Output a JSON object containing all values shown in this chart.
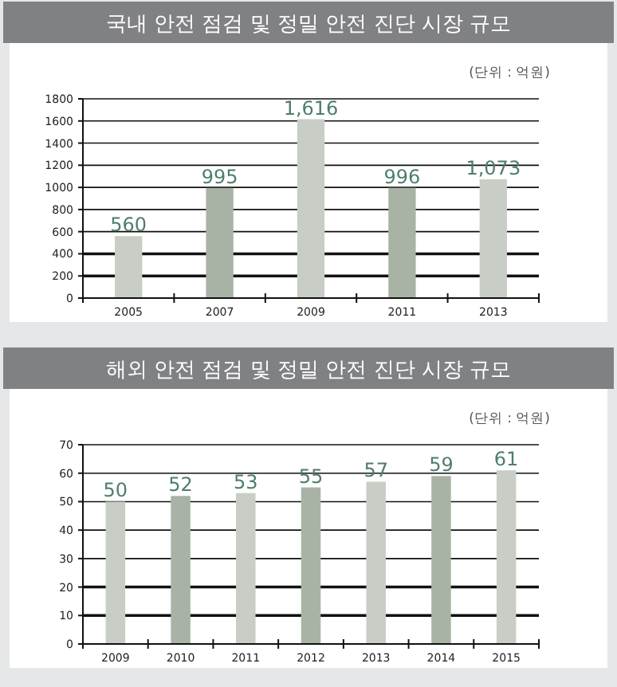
{
  "chart_data": [
    {
      "type": "bar",
      "title": "국내 안전 점검 및 정밀 안전 진단 시장 규모",
      "subtitle": "(단위 : 억원)",
      "categories": [
        "2005",
        "2007",
        "2009",
        "2011",
        "2013"
      ],
      "values": [
        560,
        995,
        1616,
        996,
        1073
      ],
      "colors": [
        "#c8cec5",
        "#a8b3a5",
        "#c8cec5",
        "#a8b3a5",
        "#c8cec5"
      ],
      "value_labels": [
        "560",
        "995",
        "1,616",
        "996",
        "1,073"
      ],
      "ylim": [
        0,
        1800
      ],
      "yticks": [
        0,
        200,
        400,
        600,
        800,
        1000,
        1200,
        1400,
        1600,
        1800
      ],
      "grid": "y"
    },
    {
      "type": "bar",
      "title": "해외 안전 점검 및 정밀 안전 진단 시장 규모",
      "subtitle": "(단위 : 억원)",
      "categories": [
        "2009",
        "2010",
        "2011",
        "2012",
        "2013",
        "2014",
        "2015"
      ],
      "values": [
        50,
        52,
        53,
        55,
        57,
        59,
        61
      ],
      "colors": [
        "#c8cec5",
        "#a8b3a5",
        "#c8cec5",
        "#a8b3a5",
        "#c8cec5",
        "#a8b3a5",
        "#c8cec5"
      ],
      "data_labels": true,
      "ylim": [
        0,
        70
      ],
      "yticks": [
        0,
        10,
        20,
        30,
        40,
        50,
        60,
        70
      ],
      "grid": "y"
    }
  ]
}
